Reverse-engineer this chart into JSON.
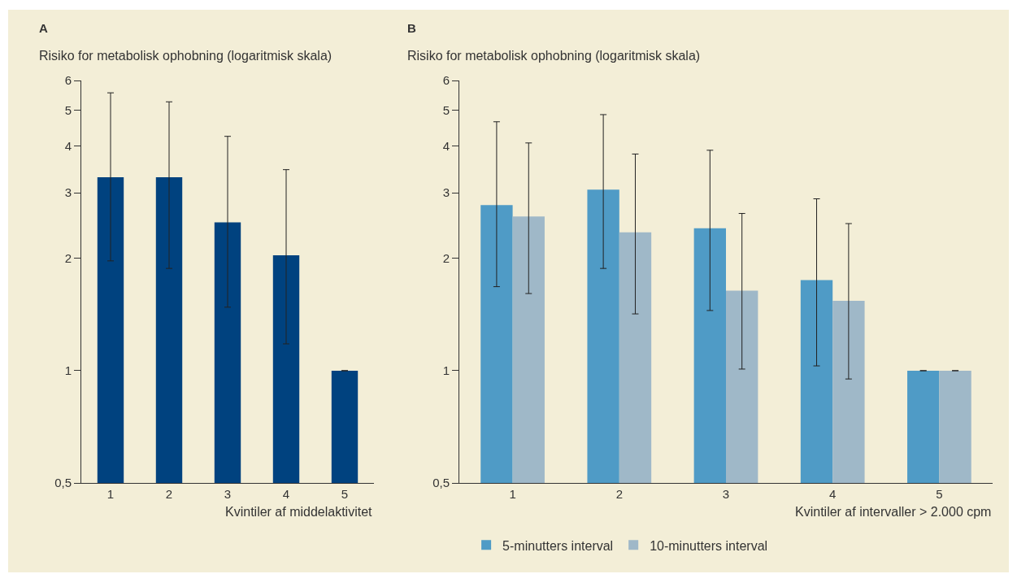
{
  "chart_data": [
    {
      "type": "bar",
      "title": "A",
      "ylabel": "Risiko for metabolisk ophobning (logaritmisk skala)",
      "xlabel": "Kvintiler af middelaktivitet",
      "categories": [
        "1",
        "2",
        "3",
        "4",
        "5"
      ],
      "log": "y",
      "ylim": [
        0.5,
        6
      ],
      "yticks": [
        {
          "value": 0.5,
          "label": "0,5"
        },
        1,
        2,
        3,
        4,
        5,
        6
      ],
      "grid": false,
      "legend": false,
      "series": [
        {
          "color": "#00427f",
          "values": [
            3.3,
            3.3,
            2.5,
            2.04,
            1
          ],
          "errors": [
            [
              1.97,
              5.56
            ],
            [
              1.88,
              5.26
            ],
            [
              1.48,
              4.25
            ],
            [
              1.18,
              3.46
            ],
            null
          ]
        }
      ]
    },
    {
      "type": "bar",
      "title": "B",
      "ylabel": "Risiko for metabolisk ophobning (logaritmisk skala)",
      "xlabel": "Kvintiler af intervaller > 2.000 cpm",
      "categories": [
        "1",
        "2",
        "3",
        "4",
        "5"
      ],
      "log": "y",
      "ylim": [
        0.5,
        6
      ],
      "yticks": [
        {
          "value": 0.5,
          "label": "0,5"
        },
        1,
        2,
        3,
        4,
        5,
        6
      ],
      "grid": false,
      "legend": "bottom",
      "series": [
        {
          "name": "5-minutters interval",
          "color": "#4f9bc6",
          "values": [
            2.78,
            3.06,
            2.41,
            1.75,
            1
          ],
          "errors": [
            [
              1.68,
              4.65
            ],
            [
              1.88,
              4.86
            ],
            [
              1.45,
              3.9
            ],
            [
              1.03,
              2.89
            ],
            null
          ]
        },
        {
          "name": "10-minutters interval",
          "color": "#9fb8c8",
          "values": [
            2.59,
            2.35,
            1.64,
            1.54,
            1
          ],
          "errors": [
            [
              1.61,
              4.08
            ],
            [
              1.42,
              3.81
            ],
            [
              1.01,
              2.64
            ],
            [
              0.95,
              2.48
            ],
            null
          ]
        }
      ]
    }
  ]
}
